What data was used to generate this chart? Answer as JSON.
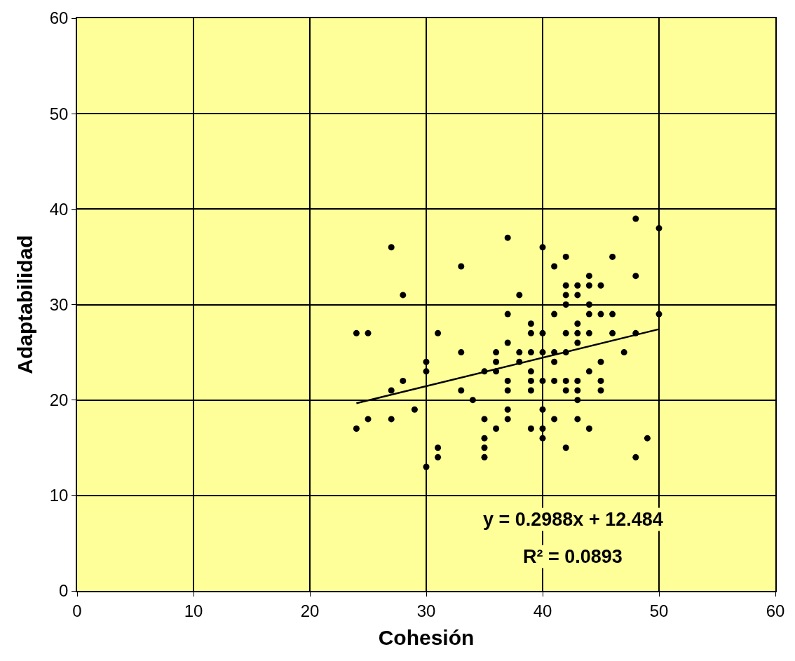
{
  "chart_data": {
    "type": "scatter",
    "xlabel": "Cohesión",
    "ylabel": "Adaptabilidad",
    "xlim": [
      0,
      60
    ],
    "ylim": [
      0,
      60
    ],
    "xticks": [
      0,
      10,
      20,
      30,
      40,
      50,
      60
    ],
    "yticks": [
      0,
      10,
      20,
      30,
      40,
      50,
      60
    ],
    "grid": true,
    "marker": "circle",
    "series": [
      {
        "color": "#000000",
        "x": [
          24,
          25,
          24,
          25,
          27,
          27,
          27,
          28,
          28,
          29,
          30,
          30,
          30,
          31,
          31,
          31,
          33,
          33,
          33,
          34,
          35,
          35,
          35,
          35,
          35,
          36,
          36,
          36,
          36,
          37,
          37,
          37,
          37,
          37,
          37,
          37,
          38,
          38,
          38,
          39,
          39,
          39,
          39,
          39,
          39,
          39,
          40,
          40,
          40,
          40,
          40,
          40,
          40,
          41,
          41,
          41,
          41,
          41,
          41,
          42,
          42,
          42,
          42,
          42,
          42,
          42,
          42,
          42,
          43,
          43,
          43,
          43,
          43,
          43,
          43,
          43,
          43,
          44,
          44,
          44,
          44,
          44,
          44,
          44,
          45,
          45,
          45,
          45,
          45,
          46,
          46,
          46,
          47,
          48,
          48,
          48,
          48,
          49,
          50,
          50
        ],
        "values": [
          27,
          27,
          17,
          18,
          36,
          21,
          18,
          31,
          22,
          19,
          24,
          23,
          13,
          27,
          15,
          14,
          34,
          25,
          21,
          20,
          23,
          18,
          16,
          15,
          14,
          25,
          24,
          23,
          17,
          37,
          29,
          26,
          22,
          21,
          19,
          18,
          31,
          25,
          24,
          28,
          27,
          25,
          23,
          22,
          21,
          17,
          36,
          27,
          25,
          22,
          19,
          17,
          16,
          34,
          29,
          25,
          24,
          22,
          18,
          35,
          32,
          31,
          30,
          27,
          25,
          22,
          21,
          15,
          32,
          31,
          28,
          27,
          26,
          22,
          21,
          20,
          18,
          33,
          32,
          30,
          29,
          27,
          23,
          17,
          32,
          29,
          24,
          22,
          21,
          35,
          29,
          27,
          25,
          39,
          33,
          27,
          14,
          16,
          38,
          29
        ]
      },
      {
        "type": "line",
        "color": "#000000",
        "x": [
          24,
          50
        ],
        "values": [
          19.66,
          27.42
        ],
        "line_style": "solid",
        "marker": "none"
      }
    ],
    "annotations": [
      "y = 0.2988x + 12.484",
      "R² = 0.0893"
    ]
  }
}
